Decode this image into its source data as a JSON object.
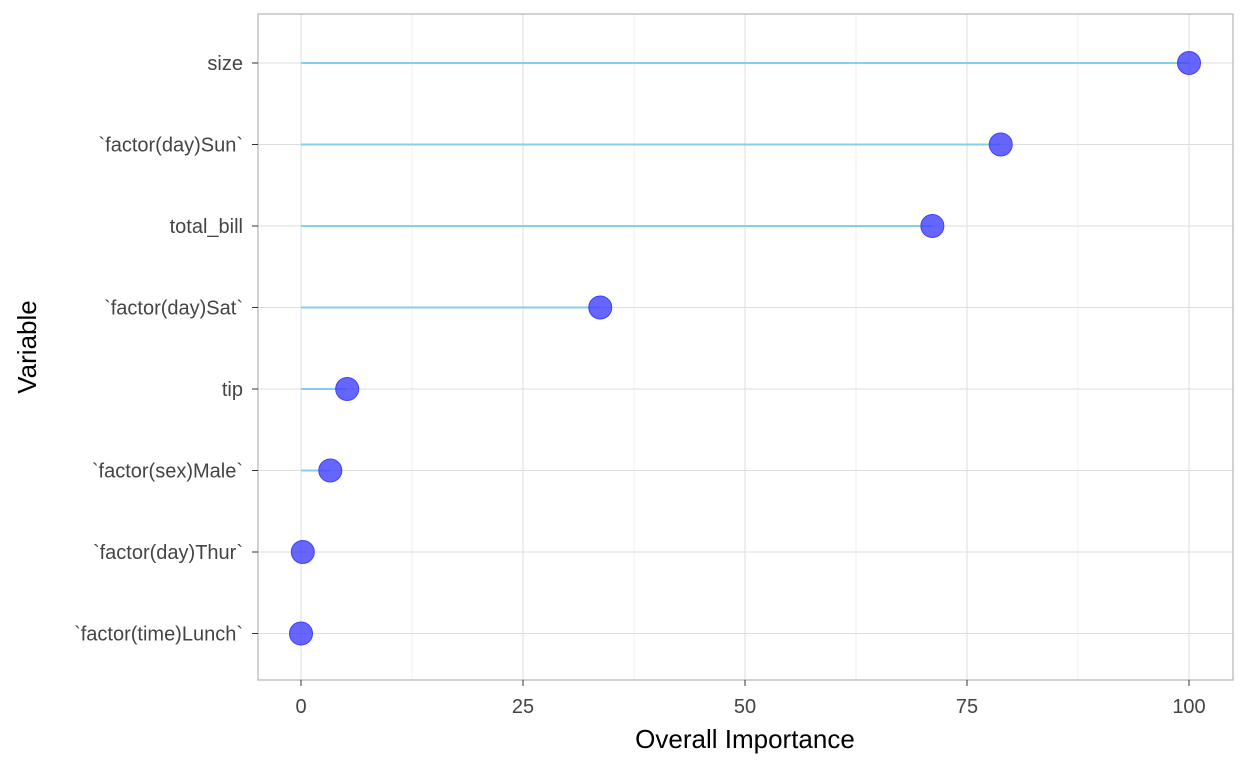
{
  "colors": {
    "background": "#ffffff",
    "panel_border": "#b3b3b3",
    "grid_major": "#dedede",
    "grid_minor": "#efefef",
    "segment": "#87ceeb",
    "point": "#4040ff",
    "tick_text": "#444444",
    "title_text": "#000000"
  },
  "chart_data": {
    "type": "lollipop",
    "xlabel": "Overall Importance",
    "ylabel": "Variable",
    "xlim": [
      -9.5,
      105
    ],
    "x_ticks": [
      0,
      25,
      50,
      75,
      100
    ],
    "x_tick_labels": [
      "0",
      "25",
      "50",
      "75",
      "100"
    ],
    "grid": true,
    "legend": "none",
    "categories": [
      "size",
      "`factor(day)Sun`",
      "total_bill",
      "`factor(day)Sat`",
      "tip",
      "`factor(sex)Male`",
      "`factor(day)Thur`",
      "`factor(time)Lunch`"
    ],
    "values": [
      100,
      78.8,
      71.1,
      33.7,
      5.2,
      3.3,
      0.2,
      0
    ]
  }
}
